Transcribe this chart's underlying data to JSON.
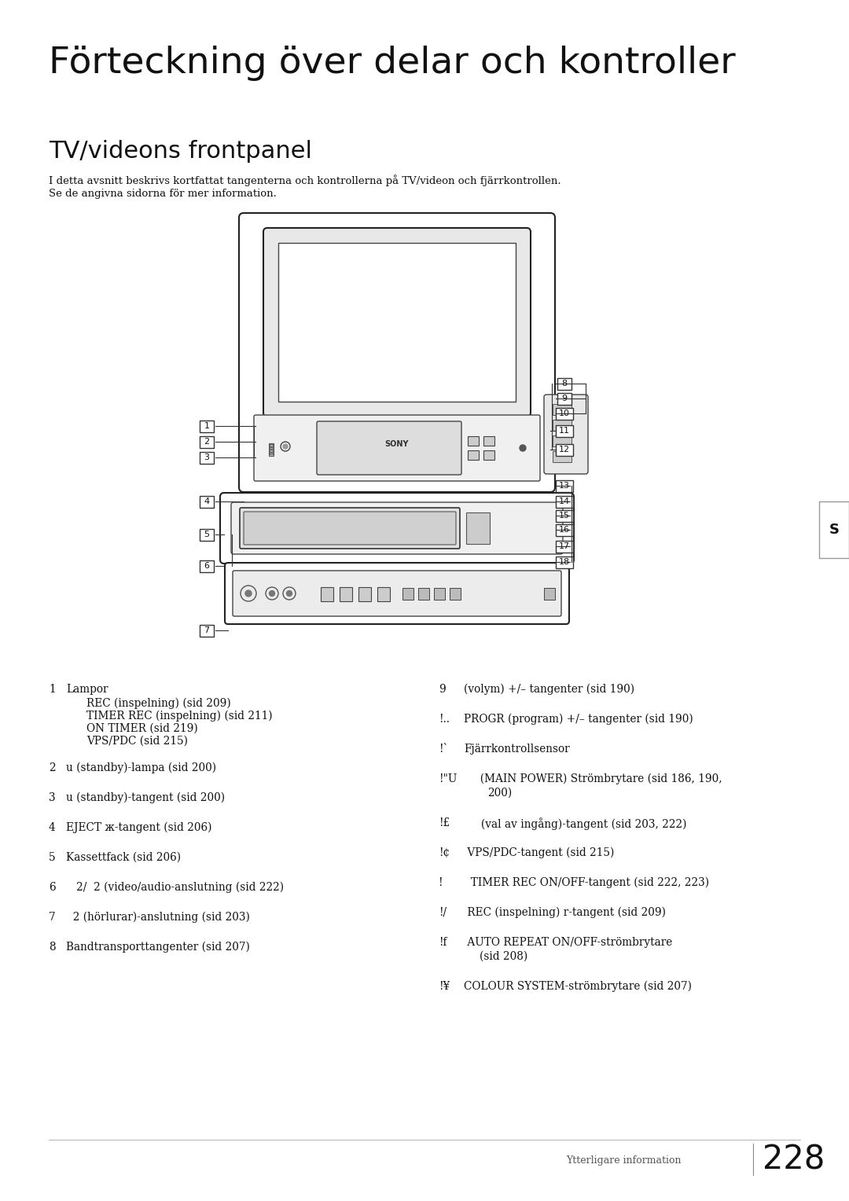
{
  "bg_color": "#ffffff",
  "title": "Förteckning över delar och kontroller",
  "title_display": "F rteckning  ver delar och kontroller",
  "subtitle": "TV/videons frontpanel",
  "intro_line1": "I detta avsnitt beskrivs kortfattat tangenterna och kontrollerna på TV/videon och fjärrkontrollen.",
  "intro_line2": "Se de angivna sidorna för mer information.",
  "page_label": "Ytterligare information",
  "page_num": "228",
  "side_tab": "S"
}
